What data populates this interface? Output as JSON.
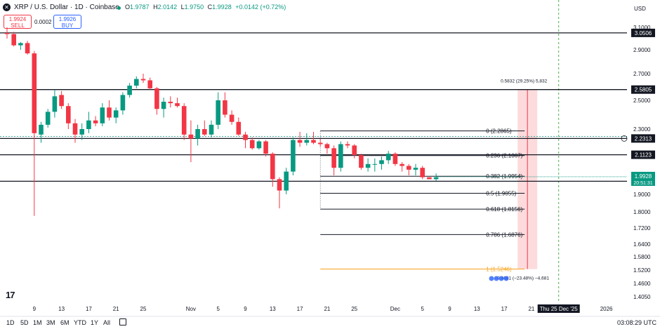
{
  "header": {
    "symbol_title": "XRP / U.S. Dollar · 1D · Coinbase",
    "ohlc": [
      {
        "label": "O",
        "value": "1.9787"
      },
      {
        "label": "H",
        "value": "2.0142"
      },
      {
        "label": "L",
        "value": "1.9750"
      },
      {
        "label": "C",
        "value": "1.9928"
      }
    ],
    "change": "+0.0142 (+0.72%)",
    "sell_price": "1.9924",
    "sell_label": "SELL",
    "buy_price": "1.9926",
    "buy_label": "BUY",
    "spread": "0.0002",
    "currency": "USD",
    "colors": {
      "up": "#089981",
      "down": "#f23645"
    }
  },
  "bottom_bar": {
    "timeframes": [
      "1D",
      "5D",
      "1M",
      "3M",
      "6M",
      "YTD",
      "1Y",
      "All"
    ],
    "clock": "03:08:29 UTC"
  },
  "chart_data": {
    "type": "candlestick",
    "y_ticks": [
      3.1,
      2.9,
      2.7,
      2.5,
      2.3,
      2.1,
      1.9,
      1.8,
      1.72,
      1.64,
      1.58,
      1.52,
      1.46,
      1.405
    ],
    "x_labels": [
      {
        "label": "9",
        "bar": 4
      },
      {
        "label": "13",
        "bar": 8
      },
      {
        "label": "17",
        "bar": 12
      },
      {
        "label": "21",
        "bar": 16
      },
      {
        "label": "25",
        "bar": 20
      },
      {
        "label": "Nov",
        "bar": 27
      },
      {
        "label": "5",
        "bar": 31
      },
      {
        "label": "9",
        "bar": 35
      },
      {
        "label": "13",
        "bar": 39
      },
      {
        "label": "17",
        "bar": 43
      },
      {
        "label": "21",
        "bar": 47
      },
      {
        "label": "25",
        "bar": 51
      },
      {
        "label": "Dec",
        "bar": 57
      },
      {
        "label": "5",
        "bar": 61
      },
      {
        "label": "9",
        "bar": 65
      },
      {
        "label": "13",
        "bar": 69
      },
      {
        "label": "17",
        "bar": 73
      },
      {
        "label": "21",
        "bar": 77
      },
      {
        "label": "2026",
        "bar": 88
      }
    ],
    "crosshair_label": "Thu 25 Dec '25",
    "crosshair_bar": 81,
    "candles": [
      [
        3.05,
        3.1,
        3.0,
        3.04
      ],
      [
        3.04,
        3.06,
        2.93,
        2.94
      ],
      [
        2.94,
        2.97,
        2.9,
        2.96
      ],
      [
        2.96,
        2.98,
        2.86,
        2.87
      ],
      [
        2.87,
        2.89,
        1.78,
        2.27
      ],
      [
        2.26,
        2.35,
        2.2,
        2.33
      ],
      [
        2.33,
        2.44,
        2.31,
        2.42
      ],
      [
        2.42,
        2.58,
        2.38,
        2.53
      ],
      [
        2.54,
        2.57,
        2.44,
        2.46
      ],
      [
        2.46,
        2.48,
        2.3,
        2.34
      ],
      [
        2.34,
        2.37,
        2.2,
        2.26
      ],
      [
        2.26,
        2.34,
        2.22,
        2.3
      ],
      [
        2.3,
        2.42,
        2.27,
        2.36
      ],
      [
        2.36,
        2.39,
        2.32,
        2.34
      ],
      [
        2.34,
        2.48,
        2.32,
        2.45
      ],
      [
        2.45,
        2.5,
        2.36,
        2.38
      ],
      [
        2.38,
        2.45,
        2.34,
        2.43
      ],
      [
        2.43,
        2.56,
        2.4,
        2.54
      ],
      [
        2.54,
        2.63,
        2.52,
        2.61
      ],
      [
        2.61,
        2.68,
        2.59,
        2.66
      ],
      [
        2.66,
        2.7,
        2.63,
        2.65
      ],
      [
        2.65,
        2.67,
        2.58,
        2.59
      ],
      [
        2.59,
        2.6,
        2.4,
        2.44
      ],
      [
        2.44,
        2.52,
        2.38,
        2.49
      ],
      [
        2.49,
        2.53,
        2.45,
        2.48
      ],
      [
        2.48,
        2.52,
        2.45,
        2.46
      ],
      [
        2.46,
        2.48,
        2.22,
        2.26
      ],
      [
        2.26,
        2.36,
        2.07,
        2.23
      ],
      [
        2.23,
        2.33,
        2.18,
        2.3
      ],
      [
        2.3,
        2.36,
        2.25,
        2.26
      ],
      [
        2.26,
        2.36,
        2.24,
        2.33
      ],
      [
        2.33,
        2.56,
        2.3,
        2.5
      ],
      [
        2.5,
        2.56,
        2.38,
        2.4
      ],
      [
        2.4,
        2.43,
        2.33,
        2.35
      ],
      [
        2.35,
        2.38,
        2.25,
        2.26
      ],
      [
        2.26,
        2.28,
        2.16,
        2.22
      ],
      [
        2.22,
        2.24,
        2.15,
        2.16
      ],
      [
        2.16,
        2.22,
        2.15,
        2.21
      ],
      [
        2.21,
        2.22,
        2.1,
        2.12
      ],
      [
        2.12,
        2.13,
        1.94,
        1.98
      ],
      [
        1.98,
        1.99,
        1.82,
        1.92
      ],
      [
        1.92,
        2.04,
        1.9,
        2.02
      ],
      [
        2.02,
        2.24,
        2.0,
        2.22
      ],
      [
        2.22,
        2.28,
        2.17,
        2.2
      ],
      [
        2.2,
        2.27,
        2.18,
        2.22
      ],
      [
        2.22,
        2.28,
        2.19,
        2.2
      ],
      [
        2.2,
        2.23,
        2.17,
        2.19
      ],
      [
        2.19,
        2.2,
        2.12,
        2.16
      ],
      [
        2.16,
        2.18,
        2.0,
        2.04
      ],
      [
        2.04,
        2.21,
        2.02,
        2.19
      ],
      [
        2.19,
        2.21,
        2.16,
        2.18
      ],
      [
        2.18,
        2.19,
        2.09,
        2.11
      ],
      [
        2.11,
        2.12,
        2.03,
        2.04
      ],
      [
        2.04,
        2.09,
        2.02,
        2.06
      ],
      [
        2.06,
        2.09,
        2.02,
        2.06
      ],
      [
        2.06,
        2.1,
        2.03,
        2.08
      ],
      [
        2.08,
        2.14,
        2.06,
        2.12
      ],
      [
        2.12,
        2.13,
        2.05,
        2.06
      ],
      [
        2.06,
        2.07,
        2.02,
        2.05
      ],
      [
        2.05,
        2.06,
        2.0,
        2.03
      ],
      [
        2.03,
        2.06,
        2.0,
        2.04
      ],
      [
        2.04,
        2.05,
        1.98,
        1.99
      ],
      [
        1.99,
        1.99,
        1.98,
        1.98
      ],
      [
        1.98,
        2.01,
        1.97,
        1.99
      ]
    ],
    "horizontal_levels": [
      {
        "value": 3.0506,
        "label": "3.0506"
      },
      {
        "value": 2.5805,
        "label": "2.5805"
      },
      {
        "value": 2.2313,
        "label": "2.2313"
      },
      {
        "value": 2.1123,
        "label": "2.1123"
      },
      {
        "value": 1.9689,
        "label": "1.9689"
      }
    ],
    "current_price": {
      "value": 1.9928,
      "label": "1.9928",
      "countdown": "20:51:31"
    },
    "fibonacci": {
      "x_start_bar": 46,
      "x_end_bar": 76,
      "levels": [
        {
          "value": 2.2865,
          "label": "0 (2.2865)"
        },
        {
          "value": 2.1067,
          "label": "0.236 (2.1067)"
        },
        {
          "value": 1.9954,
          "label": "0.382 (1.9954)"
        },
        {
          "value": 1.9055,
          "label": "0.5 (1.9055)"
        },
        {
          "value": 1.8156,
          "label": "0.618 (1.8156)"
        },
        {
          "value": 1.6876,
          "label": "0.786 (1.6876)"
        },
        {
          "value": 1.5246,
          "label": "1 (1.5246)"
        }
      ]
    },
    "measure_up": {
      "label": "0.5832 (29.25%) 5,832"
    },
    "measure_down": {
      "label": "−0.4681 (−23.48%) −4,681"
    }
  }
}
